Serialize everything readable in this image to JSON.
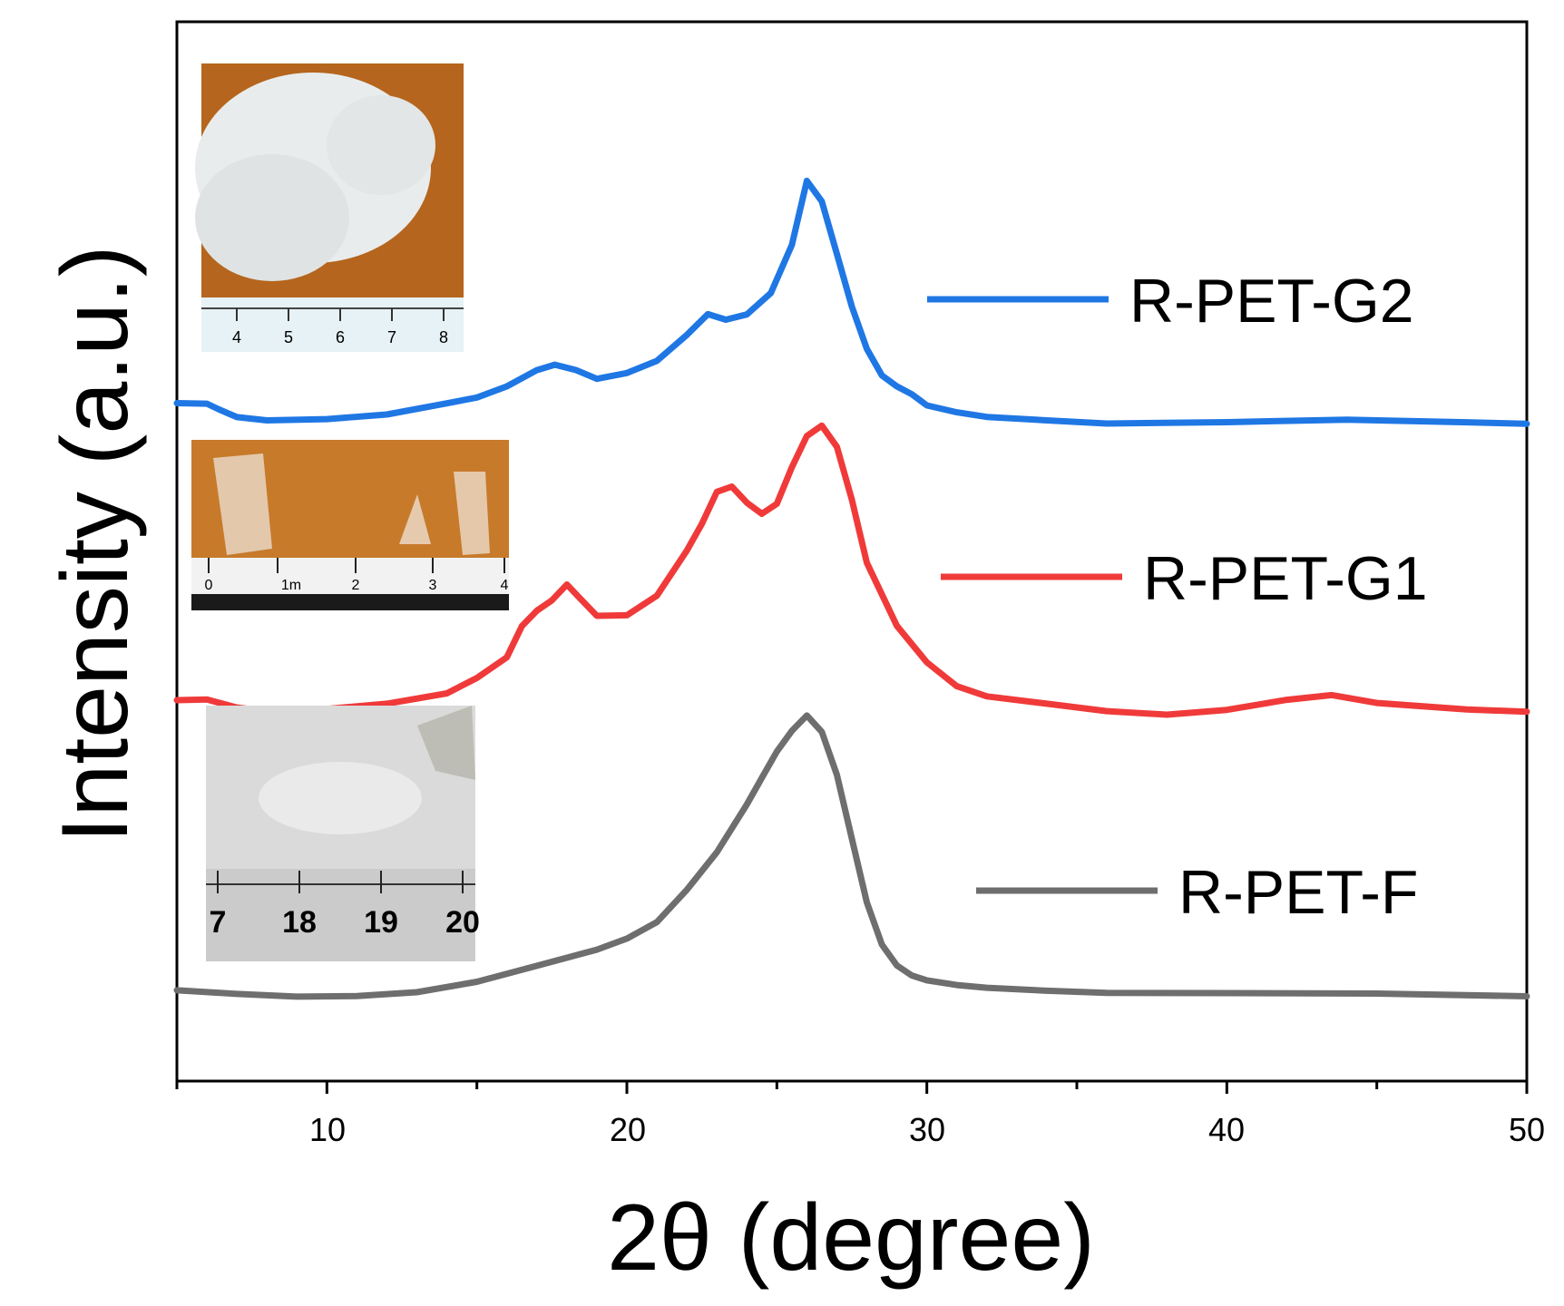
{
  "chart_data": {
    "type": "line",
    "title": "",
    "xlabel": "2θ (degree)",
    "ylabel": "Intensity (a.u.)",
    "xlim": [
      5,
      50
    ],
    "ylim": [
      0,
      1
    ],
    "grid": false,
    "x_ticks": [
      "10",
      "20",
      "30",
      "40",
      "50"
    ],
    "legend_position": "right",
    "series": [
      {
        "name": "R-PET-G2",
        "color": "#1f77e4",
        "x": [
          5,
          6,
          6.4,
          7,
          8,
          10,
          12,
          14,
          15,
          16,
          17,
          17.6,
          18.3,
          19,
          20,
          21,
          22,
          22.7,
          23.3,
          24,
          24.8,
          25.5,
          26,
          26.5,
          27,
          27.5,
          28,
          28.5,
          29,
          29.5,
          30,
          31,
          32,
          34,
          36,
          40,
          44,
          48,
          50
        ],
        "values": [
          0.64,
          0.64,
          0.635,
          0.628,
          0.625,
          0.626,
          0.63,
          0.64,
          0.645,
          0.655,
          0.67,
          0.675,
          0.67,
          0.662,
          0.668,
          0.68,
          0.705,
          0.725,
          0.72,
          0.725,
          0.745,
          0.79,
          0.85,
          0.83,
          0.78,
          0.73,
          0.69,
          0.665,
          0.655,
          0.648,
          0.638,
          0.632,
          0.628,
          0.625,
          0.622,
          0.623,
          0.625,
          0.622,
          0.62
        ]
      },
      {
        "name": "R-PET-G1",
        "color": "#f03a3a",
        "x": [
          5,
          6,
          7,
          8,
          10,
          12,
          14,
          15,
          16,
          16.5,
          17,
          17.5,
          18,
          18.5,
          19,
          20,
          21,
          22,
          22.5,
          23,
          23.5,
          24,
          24.5,
          25,
          25.5,
          26,
          26.5,
          27,
          27.5,
          28,
          29,
          30,
          31,
          32,
          34,
          36,
          38,
          40,
          42,
          43.5,
          45,
          48,
          50
        ],
        "values": [
          0.36,
          0.36,
          0.352,
          0.348,
          0.35,
          0.355,
          0.365,
          0.38,
          0.4,
          0.43,
          0.445,
          0.455,
          0.47,
          0.455,
          0.44,
          0.44,
          0.458,
          0.5,
          0.525,
          0.555,
          0.56,
          0.545,
          0.535,
          0.545,
          0.58,
          0.61,
          0.62,
          0.6,
          0.55,
          0.49,
          0.43,
          0.395,
          0.372,
          0.362,
          0.355,
          0.348,
          0.345,
          0.35,
          0.36,
          0.365,
          0.358,
          0.352,
          0.35
        ]
      },
      {
        "name": "R-PET-F",
        "color": "#6e6e6e",
        "x": [
          5,
          7,
          9,
          11,
          13,
          15,
          17,
          19,
          20,
          21,
          22,
          23,
          24,
          24.5,
          25,
          25.5,
          26,
          26.5,
          27,
          27.5,
          28,
          28.5,
          29,
          29.5,
          30,
          31,
          32,
          34,
          36,
          40,
          45,
          50
        ],
        "values": [
          0.085,
          0.082,
          0.08,
          0.081,
          0.085,
          0.095,
          0.11,
          0.125,
          0.135,
          0.15,
          0.18,
          0.215,
          0.26,
          0.285,
          0.31,
          0.33,
          0.345,
          0.33,
          0.29,
          0.23,
          0.17,
          0.13,
          0.11,
          0.1,
          0.095,
          0.09,
          0.087,
          0.084,
          0.082,
          0.082,
          0.082,
          0.08
        ]
      }
    ]
  },
  "insets": [
    {
      "name": "R-PET-G2 photo",
      "ruler_numbers": [
        "4",
        "5",
        "6",
        "7",
        "8"
      ]
    },
    {
      "name": "R-PET-G1 photo",
      "ruler_numbers": [
        "0",
        "1m",
        "2",
        "3",
        "4"
      ]
    },
    {
      "name": "R-PET-F photo",
      "ruler_numbers": [
        "7",
        "18",
        "19",
        "20"
      ]
    }
  ]
}
